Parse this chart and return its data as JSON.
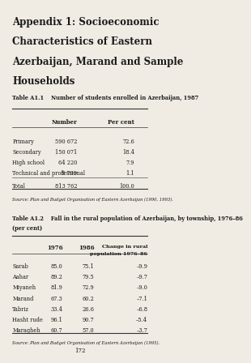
{
  "title": "Appendix 1: Socioeconomic\nCharacteristics of Eastern\nAzerbaijan, Marand and Sample\nHouseholds",
  "table1_title": "Table A1.1    Number of students enrolled in Azerbaijan, 1987",
  "table1_headers": [
    "",
    "Number",
    "Per cent"
  ],
  "table1_rows": [
    [
      "Primary",
      "590 672",
      "72.6"
    ],
    [
      "Secondary",
      "150 071",
      "18.4"
    ],
    [
      "High school",
      "64 220",
      "7.9"
    ],
    [
      "Technical and professional",
      "8 799",
      "1.1"
    ],
    [
      "",
      "",
      ""
    ],
    [
      "Total",
      "813 762",
      "100.0"
    ]
  ],
  "table1_source": "Source: Plan and Budget Organisation of Eastern Azerbaijan (1990, 1993).",
  "table2_title": "Table A1.2    Fall in the rural population of Azerbaijan, by township, 1976–86\n(per cent)",
  "table2_headers": [
    "",
    "1976",
    "1986",
    "Change in rural\npopulation 1976–86"
  ],
  "table2_rows": [
    [
      "Sarab",
      "85.0",
      "75.1",
      "–9.9"
    ],
    [
      "Aahar",
      "89.2",
      "79.5",
      "–9.7"
    ],
    [
      "Miyaneh",
      "81.9",
      "72.9",
      "–9.0"
    ],
    [
      "Marand",
      "67.3",
      "60.2",
      "–7.1"
    ],
    [
      "Tabriz",
      "33.4",
      "26.6",
      "–6.8"
    ],
    [
      "Hasht rude",
      "96.1",
      "90.7",
      "–5.4"
    ],
    [
      "Maragheh",
      "60.7",
      "57.0",
      "–3.7"
    ]
  ],
  "table2_source": "Source: Plan and Budget Organisation of Eastern Azerbaijan (1995).",
  "page_number": "172",
  "bg_color": "#f0ece4",
  "text_color": "#1a1a1a"
}
